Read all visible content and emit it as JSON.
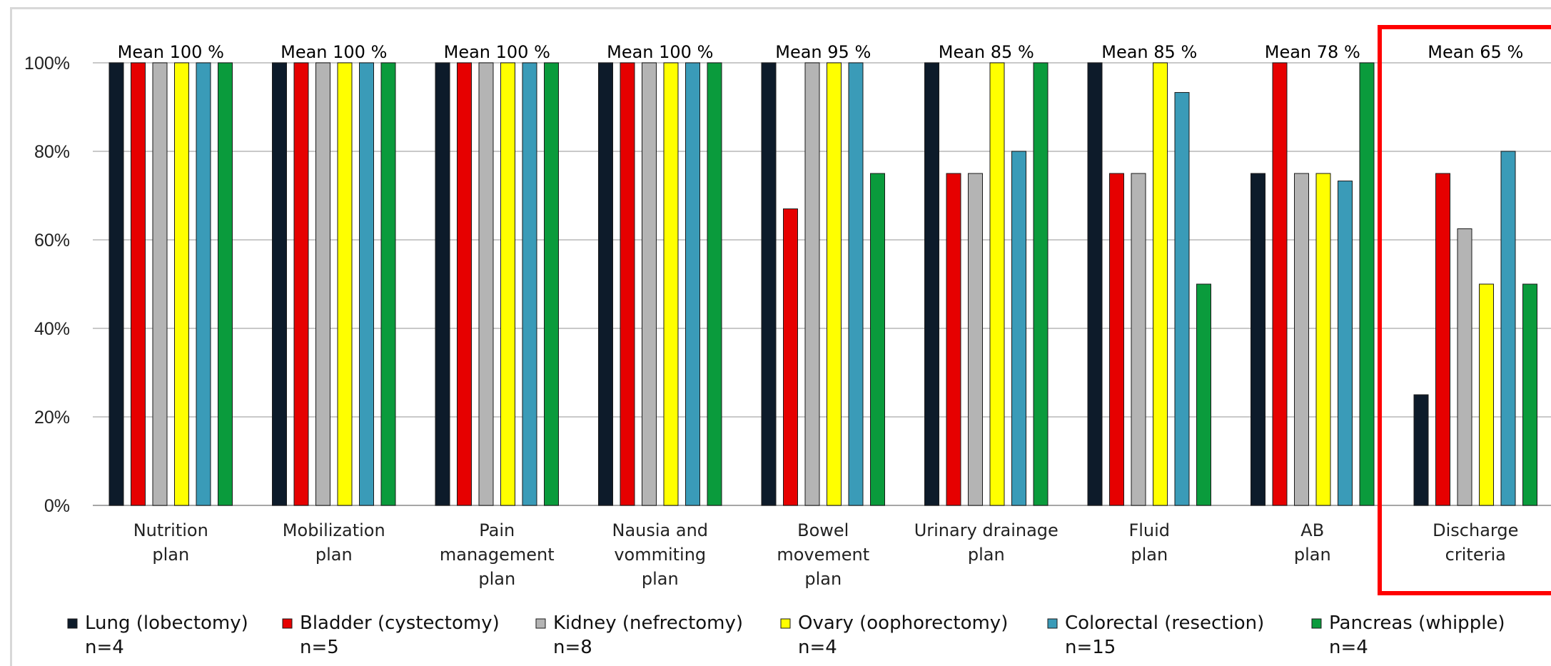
{
  "chart_data": {
    "type": "bar",
    "ylim": [
      0,
      100
    ],
    "yticks": [
      "0%",
      "20%",
      "40%",
      "60%",
      "80%",
      "100%"
    ],
    "grid": true,
    "legend_position": "bottom",
    "categories": [
      [
        "Nutrition",
        "plan"
      ],
      [
        "Mobilization",
        "plan"
      ],
      [
        "Pain",
        "management",
        "plan"
      ],
      [
        "Nausia and",
        "vommiting",
        "plan"
      ],
      [
        "Bowel",
        "movement",
        "plan"
      ],
      [
        "Urinary drainage",
        "plan"
      ],
      [
        "Fluid",
        "plan"
      ],
      [
        "AB",
        "plan"
      ],
      [
        "Discharge",
        "criteria"
      ]
    ],
    "annotations": [
      "Mean 100 %",
      "Mean 100 %",
      "Mean 100 %",
      "Mean 100 %",
      "Mean 95 %",
      "Mean 85 %",
      "Mean 85 %",
      "Mean 78 %",
      "Mean 65 %"
    ],
    "highlighted_category_index": 8,
    "highlight_color": "#ff0000",
    "series": [
      {
        "name": "Lung (lobectomy)",
        "n": "n=4",
        "color": "#0d1b2a",
        "values": [
          100,
          100,
          100,
          100,
          100,
          100,
          100,
          75,
          25
        ]
      },
      {
        "name": "Bladder (cystectomy)",
        "n": "n=5",
        "color": "#e60000",
        "values": [
          100,
          100,
          100,
          100,
          67,
          75,
          75,
          100,
          75
        ]
      },
      {
        "name": "Kidney (nefrectomy)",
        "n": "n=8",
        "color": "#b4b4b4",
        "values": [
          100,
          100,
          100,
          100,
          100,
          75,
          75,
          75,
          62.5
        ]
      },
      {
        "name": "Ovary (oophorectomy)",
        "n": "n=4",
        "color": "#ffff00",
        "values": [
          100,
          100,
          100,
          100,
          100,
          100,
          100,
          75,
          50
        ]
      },
      {
        "name": "Colorectal (resection)",
        "n": "n=15",
        "color": "#3a9bb8",
        "values": [
          100,
          100,
          100,
          100,
          100,
          80,
          93.3,
          73.3,
          80
        ]
      },
      {
        "name": "Pancreas (whipple)",
        "n": "n=4",
        "color": "#0a9b3c",
        "values": [
          100,
          100,
          100,
          100,
          75,
          100,
          50,
          100,
          50
        ]
      }
    ]
  }
}
